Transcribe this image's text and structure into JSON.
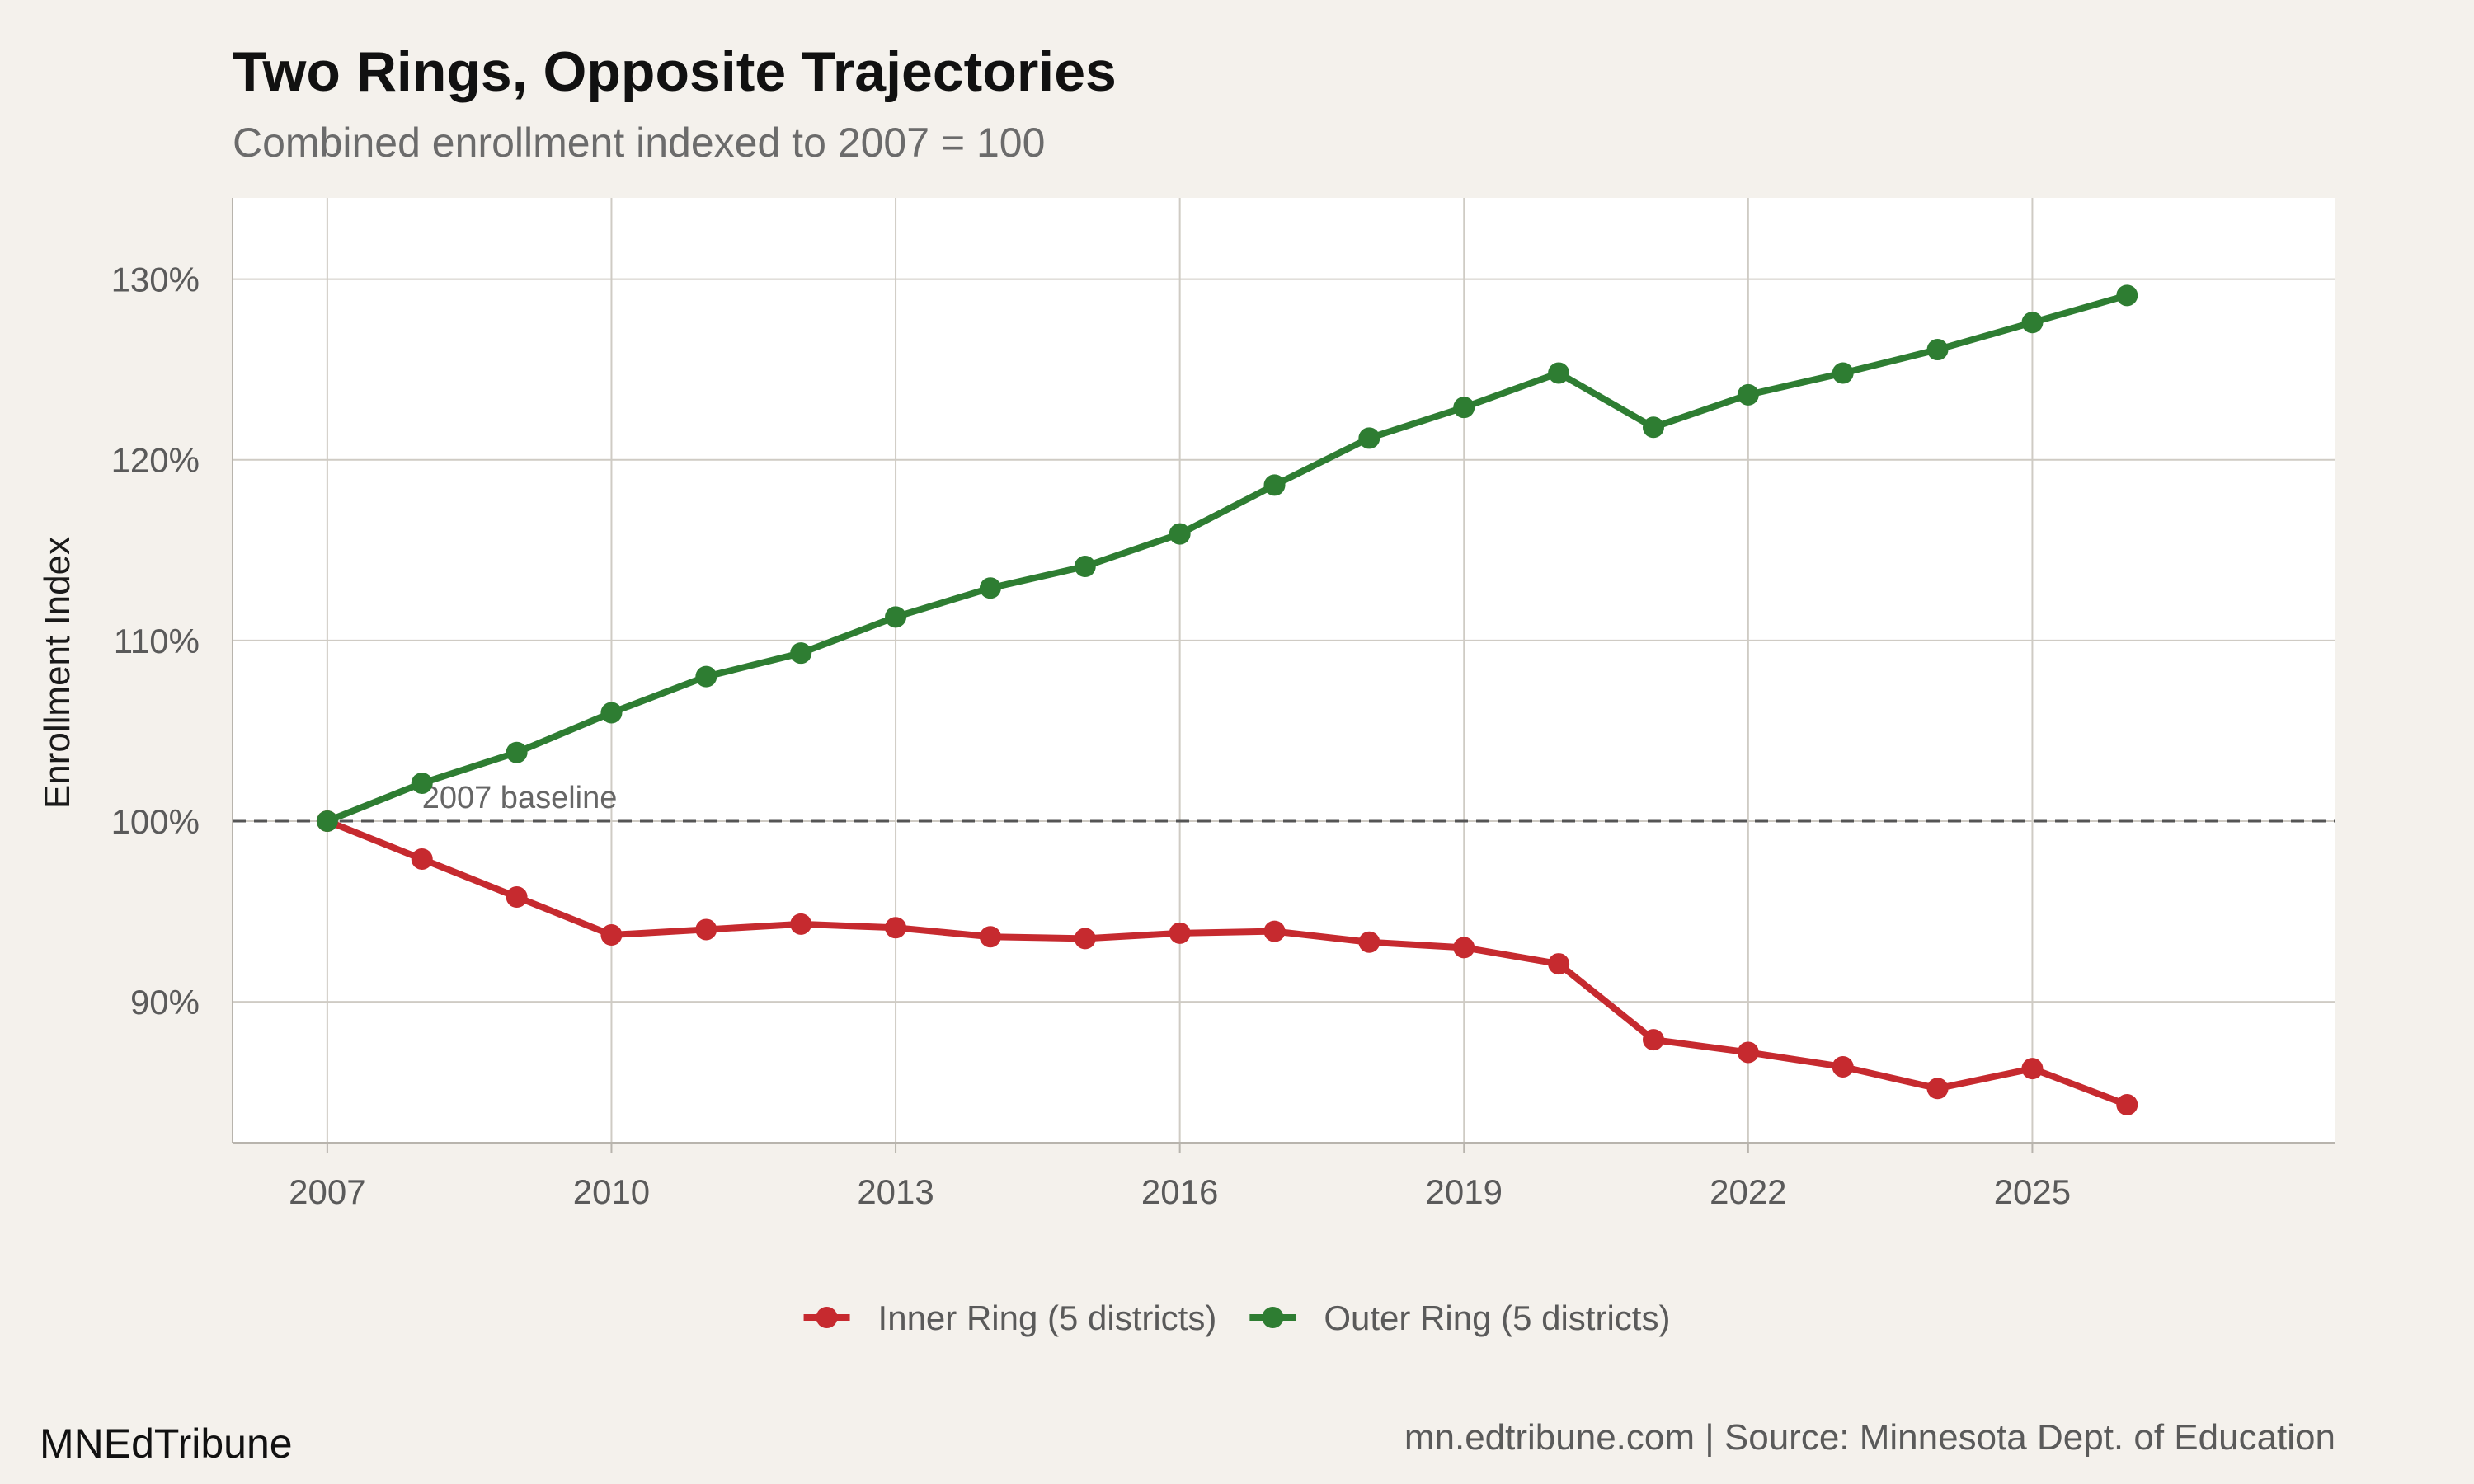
{
  "chart_data": {
    "type": "line",
    "title": "Two Rings, Opposite Trajectories",
    "subtitle": "Combined enrollment indexed to 2007 = 100",
    "xlabel": "",
    "ylabel": "Enrollment Index",
    "x": [
      2007,
      2008,
      2009,
      2010,
      2011,
      2012,
      2013,
      2014,
      2015,
      2016,
      2017,
      2018,
      2019,
      2020,
      2021,
      2022,
      2023,
      2024,
      2025,
      2026
    ],
    "series": [
      {
        "name": "Inner Ring (5 districts)",
        "color": "#c62a2f",
        "values": [
          100.0,
          97.9,
          95.8,
          93.7,
          94.0,
          94.3,
          94.1,
          93.6,
          93.5,
          93.8,
          93.9,
          93.3,
          93.0,
          92.1,
          87.9,
          87.2,
          86.4,
          85.2,
          86.3,
          84.3
        ]
      },
      {
        "name": "Outer Ring (5 districts)",
        "color": "#2e7d32",
        "values": [
          100.0,
          102.1,
          103.8,
          106.0,
          108.0,
          109.3,
          111.3,
          112.9,
          114.1,
          115.9,
          118.6,
          121.2,
          122.9,
          124.8,
          121.8,
          123.6,
          124.8,
          126.1,
          127.6,
          129.1
        ]
      }
    ],
    "xlim": [
      2006,
      2028.2
    ],
    "ylim": [
      82.2,
      134.5
    ],
    "x_ticks": [
      2007,
      2010,
      2013,
      2016,
      2019,
      2022,
      2025
    ],
    "y_ticks": [
      90,
      100,
      110,
      120,
      130
    ],
    "y_tick_labels": [
      "90%",
      "100%",
      "110%",
      "120%",
      "130%"
    ],
    "baseline": {
      "value": 100,
      "label": "2007 baseline",
      "label_x": 2008
    },
    "grid": true,
    "legend_position": "bottom"
  },
  "branding": {
    "name": "MNEdTribune",
    "source": "mn.edtribune.com | Source: Minnesota Dept. of Education"
  },
  "colors": {
    "background": "#f4f1ec",
    "panel": "#ffffff",
    "grid": "#cfcbc4",
    "baseline": "#555555"
  }
}
